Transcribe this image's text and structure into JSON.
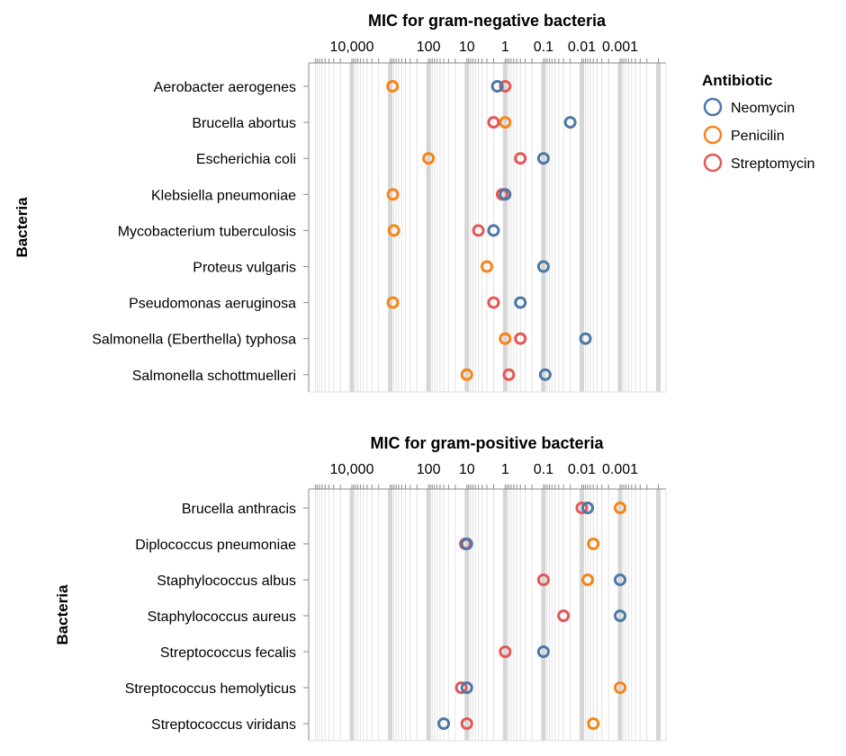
{
  "legend": {
    "title": "Antibiotic",
    "items": [
      {
        "label": "Neomycin",
        "color": "#4c78a8"
      },
      {
        "label": "Penicilin",
        "color": "#f58518"
      },
      {
        "label": "Streptomycin",
        "color": "#e45756"
      }
    ]
  },
  "chart_data": [
    {
      "type": "scatter",
      "title": "MIC for gram-negative bacteria",
      "ylabel": "Bacteria",
      "xscale": "log",
      "xaxis_reversed": true,
      "xaxis_position": "top",
      "xlim": [
        0.0001,
        100000
      ],
      "xticks": [
        {
          "value": 10000,
          "label": "10,000"
        },
        {
          "value": 100,
          "label": "100"
        },
        {
          "value": 10,
          "label": "10"
        },
        {
          "value": 1,
          "label": "1"
        },
        {
          "value": 0.1,
          "label": "0.1"
        },
        {
          "value": 0.01,
          "label": "0.01"
        },
        {
          "value": 0.001,
          "label": "0.001"
        }
      ],
      "grid": true,
      "categories": [
        "Aerobacter aerogenes",
        "Brucella abortus",
        "Escherichia coli",
        "Klebsiella pneumoniae",
        "Mycobacterium tuberculosis",
        "Proteus vulgaris",
        "Pseudomonas aeruginosa",
        "Salmonella (Eberthella) typhosa",
        "Salmonella schottmuelleri"
      ],
      "series": [
        {
          "name": "Penicilin",
          "values": [
            870,
            1,
            100,
            850,
            800,
            3,
            850,
            1,
            10
          ]
        },
        {
          "name": "Streptomycin",
          "values": [
            1,
            2,
            0.4,
            1.2,
            5,
            null,
            2,
            0.4,
            0.8
          ]
        },
        {
          "name": "Neomycin",
          "values": [
            1.6,
            0.02,
            0.1,
            1,
            2,
            0.1,
            0.4,
            0.008,
            0.09
          ]
        }
      ]
    },
    {
      "type": "scatter",
      "title": "MIC for gram-positive bacteria",
      "ylabel": "Bacteria",
      "xscale": "log",
      "xaxis_reversed": true,
      "xaxis_position": "top",
      "xlim": [
        0.0001,
        100000
      ],
      "xticks": [
        {
          "value": 10000,
          "label": "10,000"
        },
        {
          "value": 100,
          "label": "100"
        },
        {
          "value": 10,
          "label": "10"
        },
        {
          "value": 1,
          "label": "1"
        },
        {
          "value": 0.1,
          "label": "0.1"
        },
        {
          "value": 0.01,
          "label": "0.01"
        },
        {
          "value": 0.001,
          "label": "0.001"
        }
      ],
      "grid": true,
      "categories": [
        "Brucella anthracis",
        "Diplococcus pneumoniae",
        "Staphylococcus albus",
        "Staphylococcus aureus",
        "Streptococcus fecalis",
        "Streptococcus hemolyticus",
        "Streptococcus viridans"
      ],
      "series": [
        {
          "name": "Penicilin",
          "values": [
            0.001,
            0.005,
            0.007,
            null,
            null,
            0.001,
            0.005
          ]
        },
        {
          "name": "Streptomycin",
          "values": [
            0.01,
            11,
            0.1,
            0.03,
            1,
            14,
            10
          ]
        },
        {
          "name": "Neomycin",
          "values": [
            0.007,
            10,
            0.001,
            0.001,
            0.1,
            10,
            40
          ]
        }
      ]
    }
  ]
}
